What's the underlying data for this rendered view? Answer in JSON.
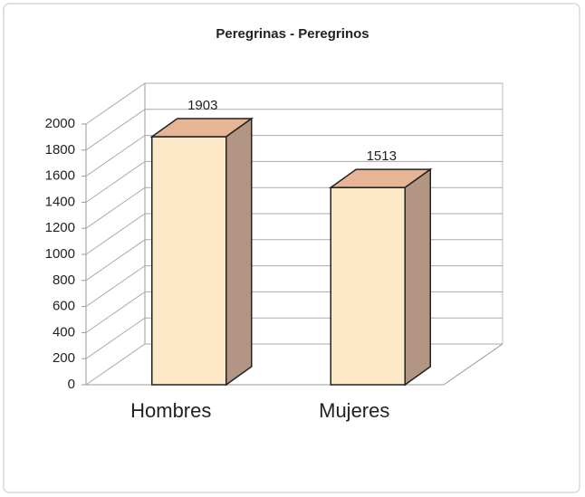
{
  "chart_data": {
    "type": "bar3d",
    "title": "Peregrinas - Peregrinos",
    "categories": [
      "Hombres",
      "Mujeres"
    ],
    "values": [
      1903,
      1513
    ],
    "colors": {
      "front": "#fde8c8",
      "top": "#e6b596",
      "side": "#b39584"
    },
    "ylim": [
      0,
      2000
    ],
    "yticks": [
      0,
      200,
      400,
      600,
      800,
      1000,
      1200,
      1400,
      1600,
      1800,
      2000
    ],
    "grid": true
  }
}
